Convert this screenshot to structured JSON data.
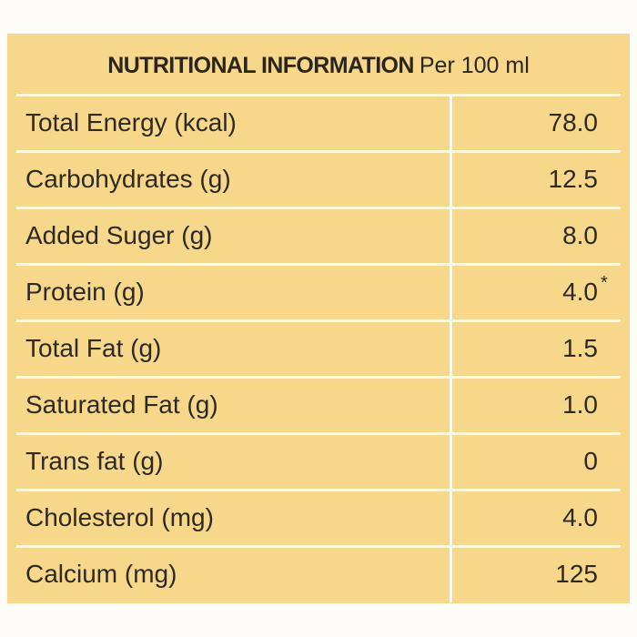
{
  "header": {
    "title": "NUTRITIONAL INFORMATION",
    "basis": "Per 100 ml"
  },
  "rows": [
    {
      "label": "Total Energy (kcal)",
      "value": "78.0"
    },
    {
      "label": "Carbohydrates (g)",
      "value": "12.5"
    },
    {
      "label": "Added Suger (g)",
      "value": "8.0"
    },
    {
      "label": "Protein (g)",
      "value": "4.0",
      "note": "*"
    },
    {
      "label": "Total Fat (g)",
      "value": "1.5"
    },
    {
      "label": "Saturated Fat (g)",
      "value": "1.0"
    },
    {
      "label": "Trans fat (g)",
      "value": "0"
    },
    {
      "label": "Cholesterol (mg)",
      "value": "4.0"
    },
    {
      "label": "Calcium (mg)",
      "value": "125"
    }
  ],
  "colors": {
    "panel": "#f7d88a",
    "grid_lines": "#fffdf3",
    "text": "#2d2a26"
  }
}
